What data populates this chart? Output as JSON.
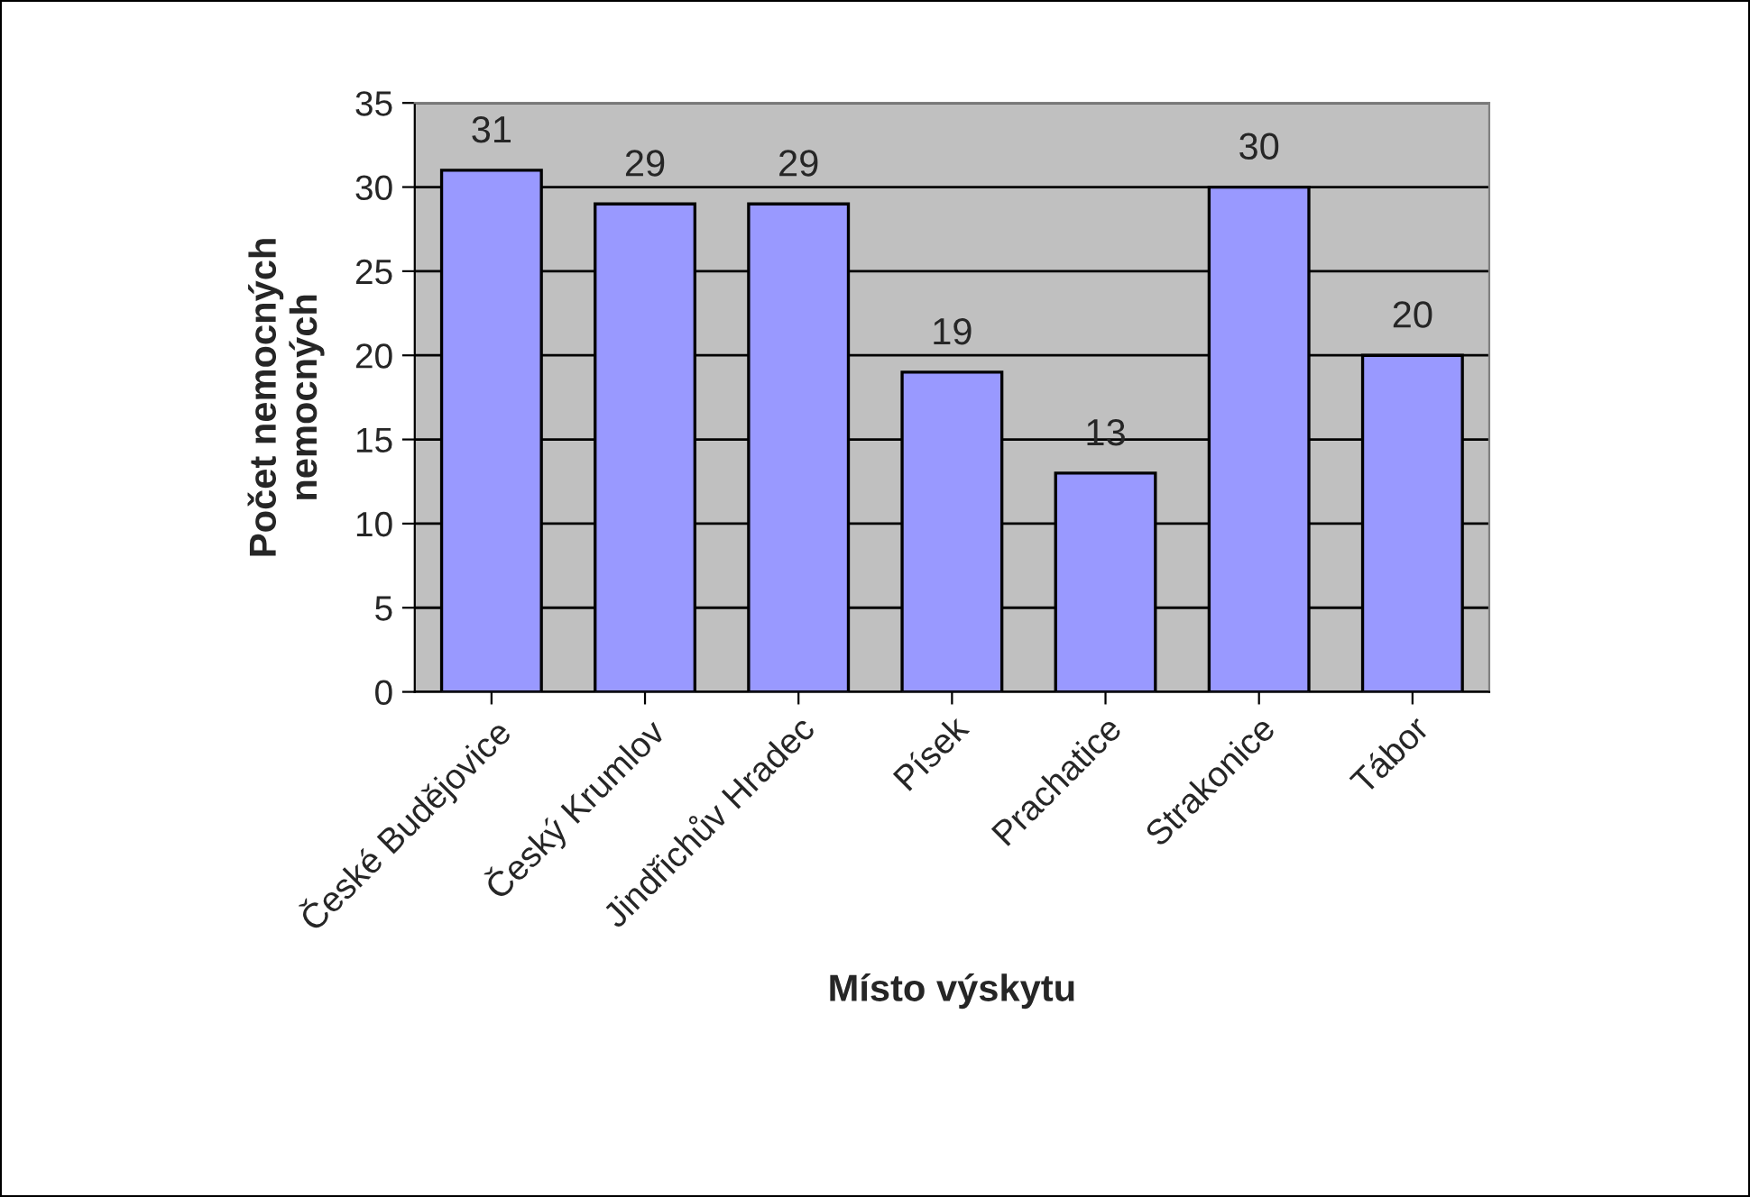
{
  "chart_data": {
    "type": "bar",
    "xlabel": "Místo výskytu",
    "ylabel": "Počet nemocných\nnemocných",
    "categories": [
      "České Budějovice",
      "Český Krumlov",
      "Jindřichův Hradec",
      "Písek",
      "Prachatice",
      "Strakonice",
      "Tábor"
    ],
    "values": [
      31,
      29,
      29,
      19,
      13,
      30,
      20
    ],
    "color": "#9999ff",
    "ylim": [
      0,
      35
    ],
    "yticks": [
      0,
      5,
      10,
      15,
      20,
      25,
      30,
      35
    ],
    "grid": "y",
    "data_labels": true
  }
}
